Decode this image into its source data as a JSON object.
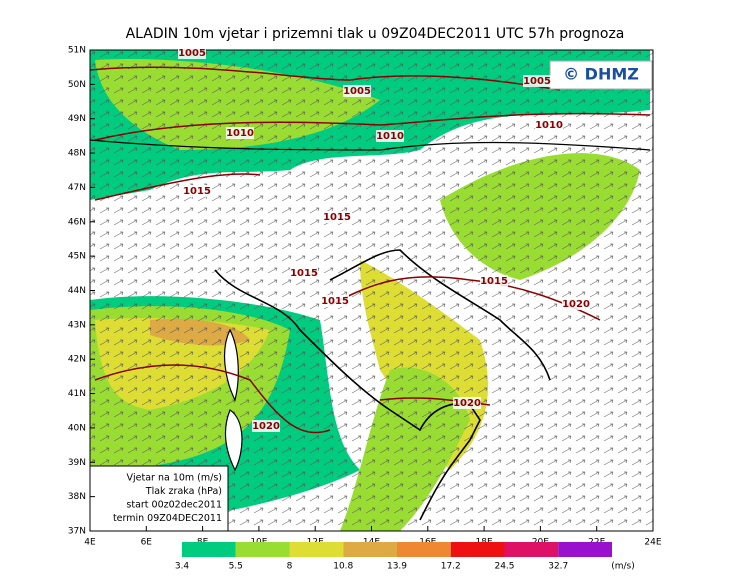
{
  "title": "ALADIN 10m vjetar i prizemni tlak u 09Z04DEC2011 UTC 57h prognoza",
  "logo": "© DHMZ",
  "lat_ticks": [
    "51N",
    "50N",
    "49N",
    "48N",
    "47N",
    "46N",
    "45N",
    "44N",
    "43N",
    "42N",
    "41N",
    "40N",
    "39N",
    "38N",
    "37N"
  ],
  "lon_ticks": [
    "4E",
    "6E",
    "8E",
    "10E",
    "12E",
    "14E",
    "16E",
    "18E",
    "20E",
    "22E",
    "24E"
  ],
  "isobar_labels": [
    "1005",
    "1005",
    "1005",
    "1010",
    "1010",
    "1010",
    "1015",
    "1015",
    "1015",
    "1015",
    "1015",
    "1020",
    "1020",
    "1020"
  ],
  "info_box": [
    "Vjetar na 10m (m/s)",
    "Tlak zraka (hPa)",
    "start 00z02dec2011",
    "termin 09Z04DEC2011"
  ],
  "legend": {
    "labels": [
      "3.4",
      "5.5",
      "8",
      "10.8",
      "13.9",
      "17.2",
      "24.5",
      "32.7"
    ],
    "colors": [
      "#00cc80",
      "#99dd33",
      "#dddd33",
      "#ddaa44",
      "#ee8833",
      "#ee1111",
      "#dd1166",
      "#9911cc"
    ],
    "unit": "(m/s)"
  }
}
